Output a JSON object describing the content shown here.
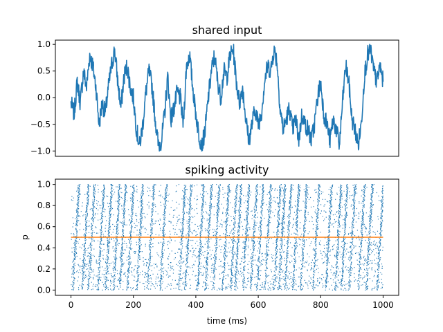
{
  "colors": {
    "series": "#1f77b4",
    "threshold": "#ff7f0e",
    "axes": "#000000",
    "background": "#ffffff"
  },
  "chart_data": [
    {
      "type": "line",
      "title": "shared input",
      "xlabel": "",
      "ylabel": "",
      "xlim": [
        -50,
        1050
      ],
      "ylim": [
        -1.1,
        1.08
      ],
      "x_ticks_visible": false,
      "yticks": [
        "−1.0",
        "−0.5",
        "0.0",
        "0.5",
        "1.0"
      ],
      "ytick_values": [
        -1.0,
        -0.5,
        0.0,
        0.5,
        1.0
      ],
      "grid": false,
      "series": [
        {
          "x": [
            0,
            10,
            20,
            30,
            40,
            50,
            60,
            70,
            80,
            90,
            100,
            110,
            120,
            130,
            140,
            150,
            160,
            170,
            180,
            190,
            200,
            210,
            220,
            230,
            240,
            250,
            260,
            270,
            280,
            290,
            300,
            310,
            320,
            330,
            340,
            350,
            360,
            370,
            380,
            390,
            400,
            410,
            420,
            430,
            440,
            450,
            460,
            470,
            480,
            490,
            500,
            510,
            520,
            530,
            540,
            550,
            560,
            570,
            580,
            590,
            600,
            610,
            620,
            630,
            640,
            650,
            660,
            670,
            680,
            690,
            700,
            710,
            720,
            730,
            740,
            750,
            760,
            770,
            780,
            790,
            800,
            810,
            820,
            830,
            840,
            850,
            860,
            870,
            880,
            890,
            900,
            910,
            920,
            930,
            940,
            950,
            960,
            970,
            980,
            990,
            1000
          ],
          "y": [
            -0.1,
            -0.3,
            0.3,
            -0.1,
            0.5,
            0.2,
            0.8,
            0.6,
            0.2,
            -0.5,
            -0.1,
            -0.3,
            0.2,
            0.6,
            0.9,
            0.3,
            -0.2,
            0.4,
            0.6,
            0.2,
            0.0,
            -0.6,
            -0.9,
            -0.5,
            0.1,
            0.5,
            0.2,
            -0.4,
            -0.9,
            -0.8,
            -0.3,
            0.4,
            -0.4,
            -0.2,
            0.1,
            0.0,
            -0.5,
            0.6,
            0.8,
            0.2,
            -0.3,
            -0.7,
            -0.9,
            -0.6,
            0.0,
            0.5,
            0.8,
            0.3,
            0.0,
            0.5,
            0.4,
            0.8,
            0.9,
            0.3,
            -0.1,
            0.2,
            -0.4,
            -0.8,
            -0.5,
            -0.2,
            -0.5,
            -0.3,
            0.3,
            0.6,
            0.5,
            0.9,
            0.7,
            -0.2,
            -0.6,
            -0.4,
            -0.2,
            -0.6,
            -0.4,
            -0.8,
            -0.3,
            -0.5,
            -0.6,
            -0.8,
            -0.5,
            0.0,
            0.3,
            -0.3,
            -0.5,
            -0.8,
            -0.4,
            -0.6,
            -0.9,
            -0.1,
            0.6,
            0.3,
            -0.4,
            -0.6,
            -0.9,
            -0.5,
            0.4,
            0.8,
            0.9,
            0.5,
            0.3,
            0.6,
            0.3
          ]
        }
      ]
    },
    {
      "type": "scatter",
      "title": "spiking activity",
      "xlabel": "time (ms)",
      "ylabel": "p",
      "xlim": [
        -50,
        1050
      ],
      "ylim": [
        -0.05,
        1.05
      ],
      "xticks": [
        "0",
        "200",
        "400",
        "600",
        "800",
        "1000"
      ],
      "xtick_values": [
        0,
        200,
        400,
        600,
        800,
        1000
      ],
      "yticks": [
        "0.0",
        "0.2",
        "0.4",
        "0.6",
        "0.8",
        "1.0"
      ],
      "ytick_values": [
        0.0,
        0.2,
        0.4,
        0.6,
        0.8,
        1.0
      ],
      "grid": false,
      "raster": {
        "neuron_p_range": [
          0,
          1
        ],
        "time_range_ms": [
          0,
          1000
        ],
        "synchronized_burst_times_ms": [
          20,
          50,
          70,
          100,
          125,
          150,
          170,
          195,
          225,
          260,
          300,
          360,
          380,
          420,
          445,
          470,
          500,
          525,
          540,
          565,
          590,
          610,
          635,
          665,
          680,
          700,
          725,
          750,
          790,
          830,
          860,
          880,
          905,
          935,
          960,
          995
        ]
      },
      "series": [
        {
          "name": "",
          "type": "line",
          "x": [
            0,
            1000
          ],
          "y": [
            0.5,
            0.5
          ]
        }
      ]
    }
  ]
}
